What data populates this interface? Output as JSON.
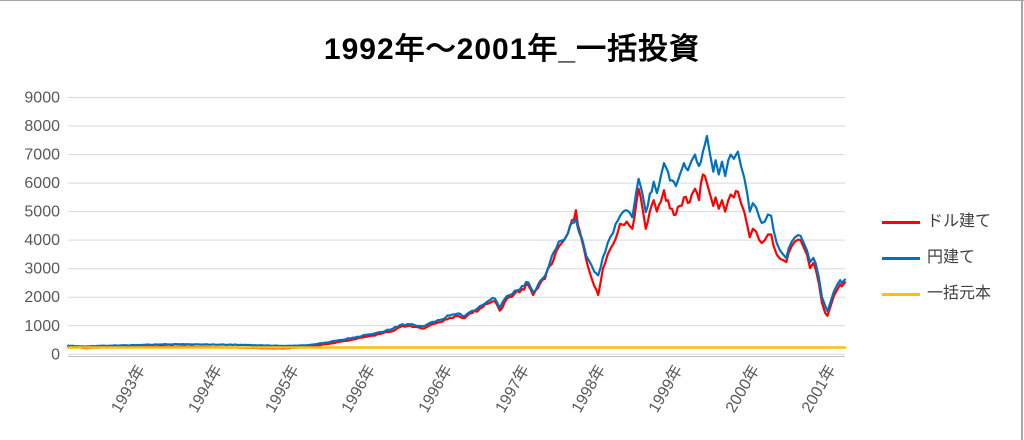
{
  "title": "1992年～2001年_一括投資",
  "legend": {
    "items": [
      {
        "label": "ドル建て",
        "color": "#FF0000"
      },
      {
        "label": "円建て",
        "color": "#0070C0"
      },
      {
        "label": "一括元本",
        "color": "#FFC000"
      }
    ]
  },
  "colors": {
    "gridline": "#D9D9D9",
    "axis_line": "#BFBFBF",
    "tick_text": "#595959",
    "title_text": "#000000",
    "frame_border": "#A6A6A6"
  },
  "chart_data": {
    "type": "line",
    "title": "1992年～2001年_一括投資",
    "xlabel": "",
    "ylabel": "",
    "ylim": [
      0,
      9000
    ],
    "grid": true,
    "legend_position": "right",
    "y_ticks": [
      0,
      1000,
      2000,
      3000,
      4000,
      5000,
      6000,
      7000,
      8000,
      9000
    ],
    "x_range": [
      1992.16,
      2001.95
    ],
    "x_ticks": [
      {
        "pos": 1993.1,
        "label": "1993年"
      },
      {
        "pos": 1994.07,
        "label": "1994年"
      },
      {
        "pos": 1995.04,
        "label": "1995年"
      },
      {
        "pos": 1996.0,
        "label": "1996年"
      },
      {
        "pos": 1996.97,
        "label": "1996年"
      },
      {
        "pos": 1997.94,
        "label": "1997年"
      },
      {
        "pos": 1998.9,
        "label": "1998年"
      },
      {
        "pos": 1999.87,
        "label": "1999年"
      },
      {
        "pos": 2000.84,
        "label": "2000年"
      },
      {
        "pos": 2001.8,
        "label": "2001年"
      }
    ],
    "series": [
      {
        "name": "ドル建て",
        "color": "#FF0000",
        "width": 2.2,
        "jitter": 0.035,
        "seed": 11,
        "points": [
          [
            1992.16,
            280
          ],
          [
            1992.37,
            220
          ],
          [
            1992.56,
            240
          ],
          [
            1992.81,
            250
          ],
          [
            1993.1,
            260
          ],
          [
            1993.32,
            270
          ],
          [
            1993.57,
            265
          ],
          [
            1993.82,
            255
          ],
          [
            1994.08,
            245
          ],
          [
            1994.33,
            235
          ],
          [
            1994.52,
            225
          ],
          [
            1994.7,
            215
          ],
          [
            1994.89,
            210
          ],
          [
            1995.04,
            230
          ],
          [
            1995.21,
            280
          ],
          [
            1995.4,
            350
          ],
          [
            1995.59,
            440
          ],
          [
            1995.78,
            530
          ],
          [
            1995.96,
            640
          ],
          [
            1996.09,
            710
          ],
          [
            1996.22,
            790
          ],
          [
            1996.34,
            950
          ],
          [
            1996.44,
            990
          ],
          [
            1996.53,
            960
          ],
          [
            1996.62,
            900
          ],
          [
            1996.72,
            1020
          ],
          [
            1996.85,
            1130
          ],
          [
            1996.97,
            1280
          ],
          [
            1997.07,
            1350
          ],
          [
            1997.16,
            1270
          ],
          [
            1997.25,
            1440
          ],
          [
            1997.35,
            1600
          ],
          [
            1997.45,
            1770
          ],
          [
            1997.54,
            1860
          ],
          [
            1997.6,
            1530
          ],
          [
            1997.69,
            1950
          ],
          [
            1997.79,
            2130
          ],
          [
            1997.88,
            2290
          ],
          [
            1997.96,
            2420
          ],
          [
            1998.02,
            2080
          ],
          [
            1998.08,
            2320
          ],
          [
            1998.17,
            2650
          ],
          [
            1998.23,
            3100
          ],
          [
            1998.31,
            3600
          ],
          [
            1998.38,
            3900
          ],
          [
            1998.46,
            4250
          ],
          [
            1998.51,
            4700
          ],
          [
            1998.56,
            5050
          ],
          [
            1998.61,
            4300
          ],
          [
            1998.66,
            3700
          ],
          [
            1998.72,
            3000
          ],
          [
            1998.79,
            2400
          ],
          [
            1998.84,
            2080
          ],
          [
            1998.9,
            3000
          ],
          [
            1998.96,
            3500
          ],
          [
            1999.03,
            3860
          ],
          [
            1999.09,
            4300
          ],
          [
            1999.14,
            4550
          ],
          [
            1999.2,
            4650
          ],
          [
            1999.27,
            4400
          ],
          [
            1999.32,
            5300
          ],
          [
            1999.35,
            5800
          ],
          [
            1999.4,
            5100
          ],
          [
            1999.44,
            4400
          ],
          [
            1999.49,
            5000
          ],
          [
            1999.54,
            5400
          ],
          [
            1999.58,
            5000
          ],
          [
            1999.63,
            5350
          ],
          [
            1999.67,
            5750
          ],
          [
            1999.72,
            5400
          ],
          [
            1999.77,
            5100
          ],
          [
            1999.82,
            4900
          ],
          [
            1999.87,
            5200
          ],
          [
            1999.92,
            5500
          ],
          [
            1999.97,
            5300
          ],
          [
            2000.02,
            5600
          ],
          [
            2000.06,
            5800
          ],
          [
            2000.11,
            5400
          ],
          [
            2000.16,
            6300
          ],
          [
            2000.21,
            6000
          ],
          [
            2000.25,
            5600
          ],
          [
            2000.29,
            5200
          ],
          [
            2000.32,
            5500
          ],
          [
            2000.36,
            5100
          ],
          [
            2000.4,
            5400
          ],
          [
            2000.44,
            5000
          ],
          [
            2000.48,
            5400
          ],
          [
            2000.51,
            5600
          ],
          [
            2000.55,
            5500
          ],
          [
            2000.6,
            5700
          ],
          [
            2000.64,
            5300
          ],
          [
            2000.68,
            5000
          ],
          [
            2000.72,
            4500
          ],
          [
            2000.75,
            4100
          ],
          [
            2000.79,
            4400
          ],
          [
            2000.83,
            4300
          ],
          [
            2000.87,
            4000
          ],
          [
            2000.9,
            3900
          ],
          [
            2000.94,
            4000
          ],
          [
            2000.98,
            4200
          ],
          [
            2001.02,
            4200
          ],
          [
            2001.05,
            3800
          ],
          [
            2001.09,
            3500
          ],
          [
            2001.13,
            3350
          ],
          [
            2001.17,
            3300
          ],
          [
            2001.21,
            3230
          ],
          [
            2001.24,
            3550
          ],
          [
            2001.28,
            3800
          ],
          [
            2001.32,
            3950
          ],
          [
            2001.36,
            4020
          ],
          [
            2001.39,
            4000
          ],
          [
            2001.43,
            3750
          ],
          [
            2001.47,
            3500
          ],
          [
            2001.51,
            3020
          ],
          [
            2001.55,
            3200
          ],
          [
            2001.58,
            3000
          ],
          [
            2001.62,
            2500
          ],
          [
            2001.66,
            1800
          ],
          [
            2001.7,
            1450
          ],
          [
            2001.73,
            1350
          ],
          [
            2001.77,
            1700
          ],
          [
            2001.81,
            2050
          ],
          [
            2001.85,
            2250
          ],
          [
            2001.89,
            2450
          ],
          [
            2001.91,
            2380
          ],
          [
            2001.95,
            2520
          ]
        ]
      },
      {
        "name": "円建て",
        "color": "#0070C0",
        "width": 2.2,
        "jitter": 0.03,
        "seed": 5,
        "points": [
          [
            1992.16,
            300
          ],
          [
            1992.37,
            270
          ],
          [
            1992.56,
            295
          ],
          [
            1992.81,
            310
          ],
          [
            1993.1,
            330
          ],
          [
            1993.32,
            345
          ],
          [
            1993.57,
            350
          ],
          [
            1993.82,
            345
          ],
          [
            1994.08,
            340
          ],
          [
            1994.33,
            330
          ],
          [
            1994.52,
            320
          ],
          [
            1994.7,
            305
          ],
          [
            1994.89,
            290
          ],
          [
            1995.04,
            300
          ],
          [
            1995.21,
            330
          ],
          [
            1995.4,
            410
          ],
          [
            1995.59,
            500
          ],
          [
            1995.78,
            590
          ],
          [
            1995.96,
            700
          ],
          [
            1996.09,
            780
          ],
          [
            1996.22,
            860
          ],
          [
            1996.34,
            1020
          ],
          [
            1996.44,
            1060
          ],
          [
            1996.53,
            1020
          ],
          [
            1996.62,
            980
          ],
          [
            1996.72,
            1100
          ],
          [
            1996.85,
            1210
          ],
          [
            1996.97,
            1360
          ],
          [
            1997.07,
            1430
          ],
          [
            1997.16,
            1350
          ],
          [
            1997.25,
            1520
          ],
          [
            1997.35,
            1690
          ],
          [
            1997.45,
            1860
          ],
          [
            1997.54,
            1950
          ],
          [
            1997.6,
            1620
          ],
          [
            1997.69,
            2040
          ],
          [
            1997.79,
            2230
          ],
          [
            1997.88,
            2390
          ],
          [
            1997.96,
            2520
          ],
          [
            1998.02,
            2180
          ],
          [
            1998.08,
            2420
          ],
          [
            1998.17,
            2750
          ],
          [
            1998.23,
            3200
          ],
          [
            1998.31,
            3700
          ],
          [
            1998.38,
            3990
          ],
          [
            1998.46,
            4250
          ],
          [
            1998.51,
            4600
          ],
          [
            1998.56,
            4750
          ],
          [
            1998.61,
            4200
          ],
          [
            1998.66,
            3800
          ],
          [
            1998.72,
            3300
          ],
          [
            1998.79,
            2900
          ],
          [
            1998.84,
            2770
          ],
          [
            1998.9,
            3400
          ],
          [
            1998.96,
            3900
          ],
          [
            1999.03,
            4260
          ],
          [
            1999.09,
            4700
          ],
          [
            1999.14,
            4950
          ],
          [
            1999.2,
            5050
          ],
          [
            1999.27,
            4800
          ],
          [
            1999.32,
            5700
          ],
          [
            1999.35,
            6150
          ],
          [
            1999.4,
            5600
          ],
          [
            1999.44,
            4980
          ],
          [
            1999.49,
            5620
          ],
          [
            1999.54,
            6050
          ],
          [
            1999.58,
            5650
          ],
          [
            1999.63,
            6250
          ],
          [
            1999.67,
            6700
          ],
          [
            1999.72,
            6400
          ],
          [
            1999.77,
            6100
          ],
          [
            1999.82,
            5900
          ],
          [
            1999.87,
            6300
          ],
          [
            1999.92,
            6700
          ],
          [
            1999.97,
            6450
          ],
          [
            2000.02,
            6800
          ],
          [
            2000.06,
            7000
          ],
          [
            2000.11,
            6600
          ],
          [
            2000.16,
            7100
          ],
          [
            2000.21,
            7650
          ],
          [
            2000.25,
            7000
          ],
          [
            2000.29,
            6400
          ],
          [
            2000.32,
            6800
          ],
          [
            2000.36,
            6300
          ],
          [
            2000.4,
            6750
          ],
          [
            2000.44,
            6250
          ],
          [
            2000.48,
            6800
          ],
          [
            2000.51,
            7000
          ],
          [
            2000.55,
            6850
          ],
          [
            2000.6,
            7100
          ],
          [
            2000.64,
            6600
          ],
          [
            2000.68,
            6200
          ],
          [
            2000.72,
            5600
          ],
          [
            2000.75,
            5000
          ],
          [
            2000.79,
            5300
          ],
          [
            2000.83,
            5150
          ],
          [
            2000.87,
            4800
          ],
          [
            2000.9,
            4600
          ],
          [
            2000.94,
            4650
          ],
          [
            2000.98,
            4900
          ],
          [
            2001.02,
            4850
          ],
          [
            2001.05,
            4350
          ],
          [
            2001.09,
            3900
          ],
          [
            2001.13,
            3650
          ],
          [
            2001.17,
            3500
          ],
          [
            2001.21,
            3370
          ],
          [
            2001.24,
            3700
          ],
          [
            2001.28,
            3950
          ],
          [
            2001.32,
            4100
          ],
          [
            2001.36,
            4180
          ],
          [
            2001.39,
            4150
          ],
          [
            2001.43,
            3900
          ],
          [
            2001.47,
            3650
          ],
          [
            2001.51,
            3230
          ],
          [
            2001.55,
            3380
          ],
          [
            2001.58,
            3200
          ],
          [
            2001.62,
            2700
          ],
          [
            2001.66,
            2000
          ],
          [
            2001.7,
            1700
          ],
          [
            2001.73,
            1500
          ],
          [
            2001.77,
            1850
          ],
          [
            2001.81,
            2200
          ],
          [
            2001.85,
            2430
          ],
          [
            2001.89,
            2600
          ],
          [
            2001.91,
            2500
          ],
          [
            2001.95,
            2620
          ]
        ]
      },
      {
        "name": "一括元本",
        "color": "#FFC000",
        "width": 2.6,
        "jitter": 0,
        "seed": 1,
        "points": [
          [
            1992.16,
            240
          ],
          [
            2001.95,
            240
          ]
        ]
      }
    ]
  }
}
